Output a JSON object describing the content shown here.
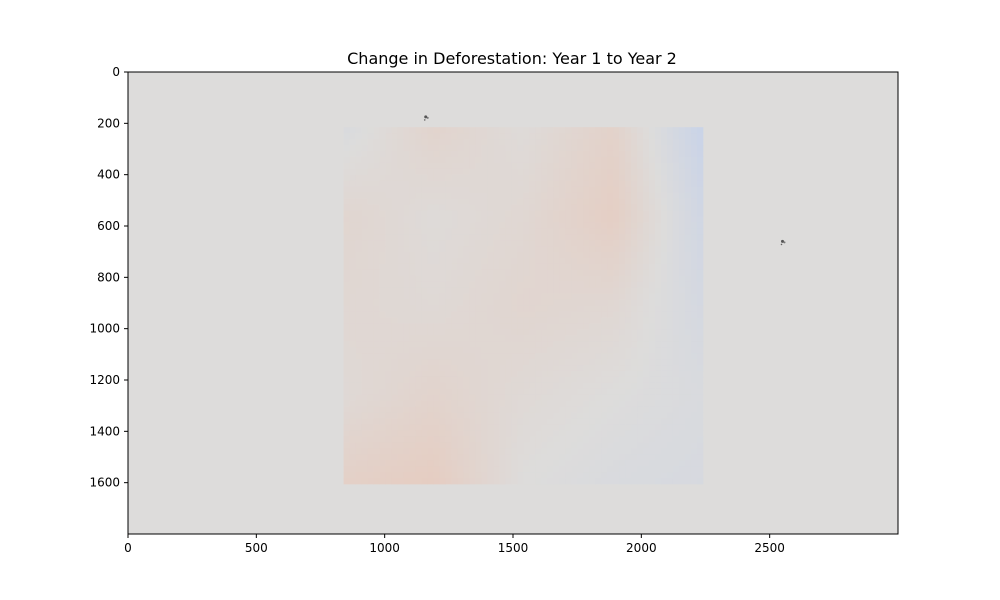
{
  "chart_data": {
    "type": "heatmap",
    "title": "Change in Deforestation: Year 1 to Year 2",
    "xlabel": "",
    "ylabel": "",
    "xlim": [
      0,
      3000
    ],
    "ylim": [
      1800,
      0
    ],
    "x_ticks": [
      0,
      500,
      1000,
      1500,
      2000,
      2500
    ],
    "y_ticks": [
      0,
      200,
      400,
      600,
      800,
      1000,
      1200,
      1400,
      1600
    ],
    "grid": false,
    "colormap": "coolwarm",
    "background_color": "#dddcdb",
    "region": {
      "x": [
        840,
        2240
      ],
      "y": [
        215,
        1605
      ]
    },
    "grid_x": [
      840,
      1190,
      1540,
      1890,
      2240
    ],
    "grid_y": [
      215,
      562.5,
      910,
      1257.5,
      1605
    ],
    "z": [
      [
        -0.1,
        0.25,
        0.05,
        0.3,
        -0.45
      ],
      [
        0.2,
        0.05,
        0.15,
        0.4,
        -0.3
      ],
      [
        0.15,
        0.1,
        0.2,
        0.15,
        -0.2
      ],
      [
        0.1,
        0.25,
        0.1,
        0.0,
        -0.1
      ],
      [
        0.35,
        0.45,
        0.0,
        -0.1,
        -0.15
      ]
    ],
    "markers": [
      {
        "x": 1160,
        "y": 175
      },
      {
        "x": 2550,
        "y": 660
      }
    ]
  }
}
